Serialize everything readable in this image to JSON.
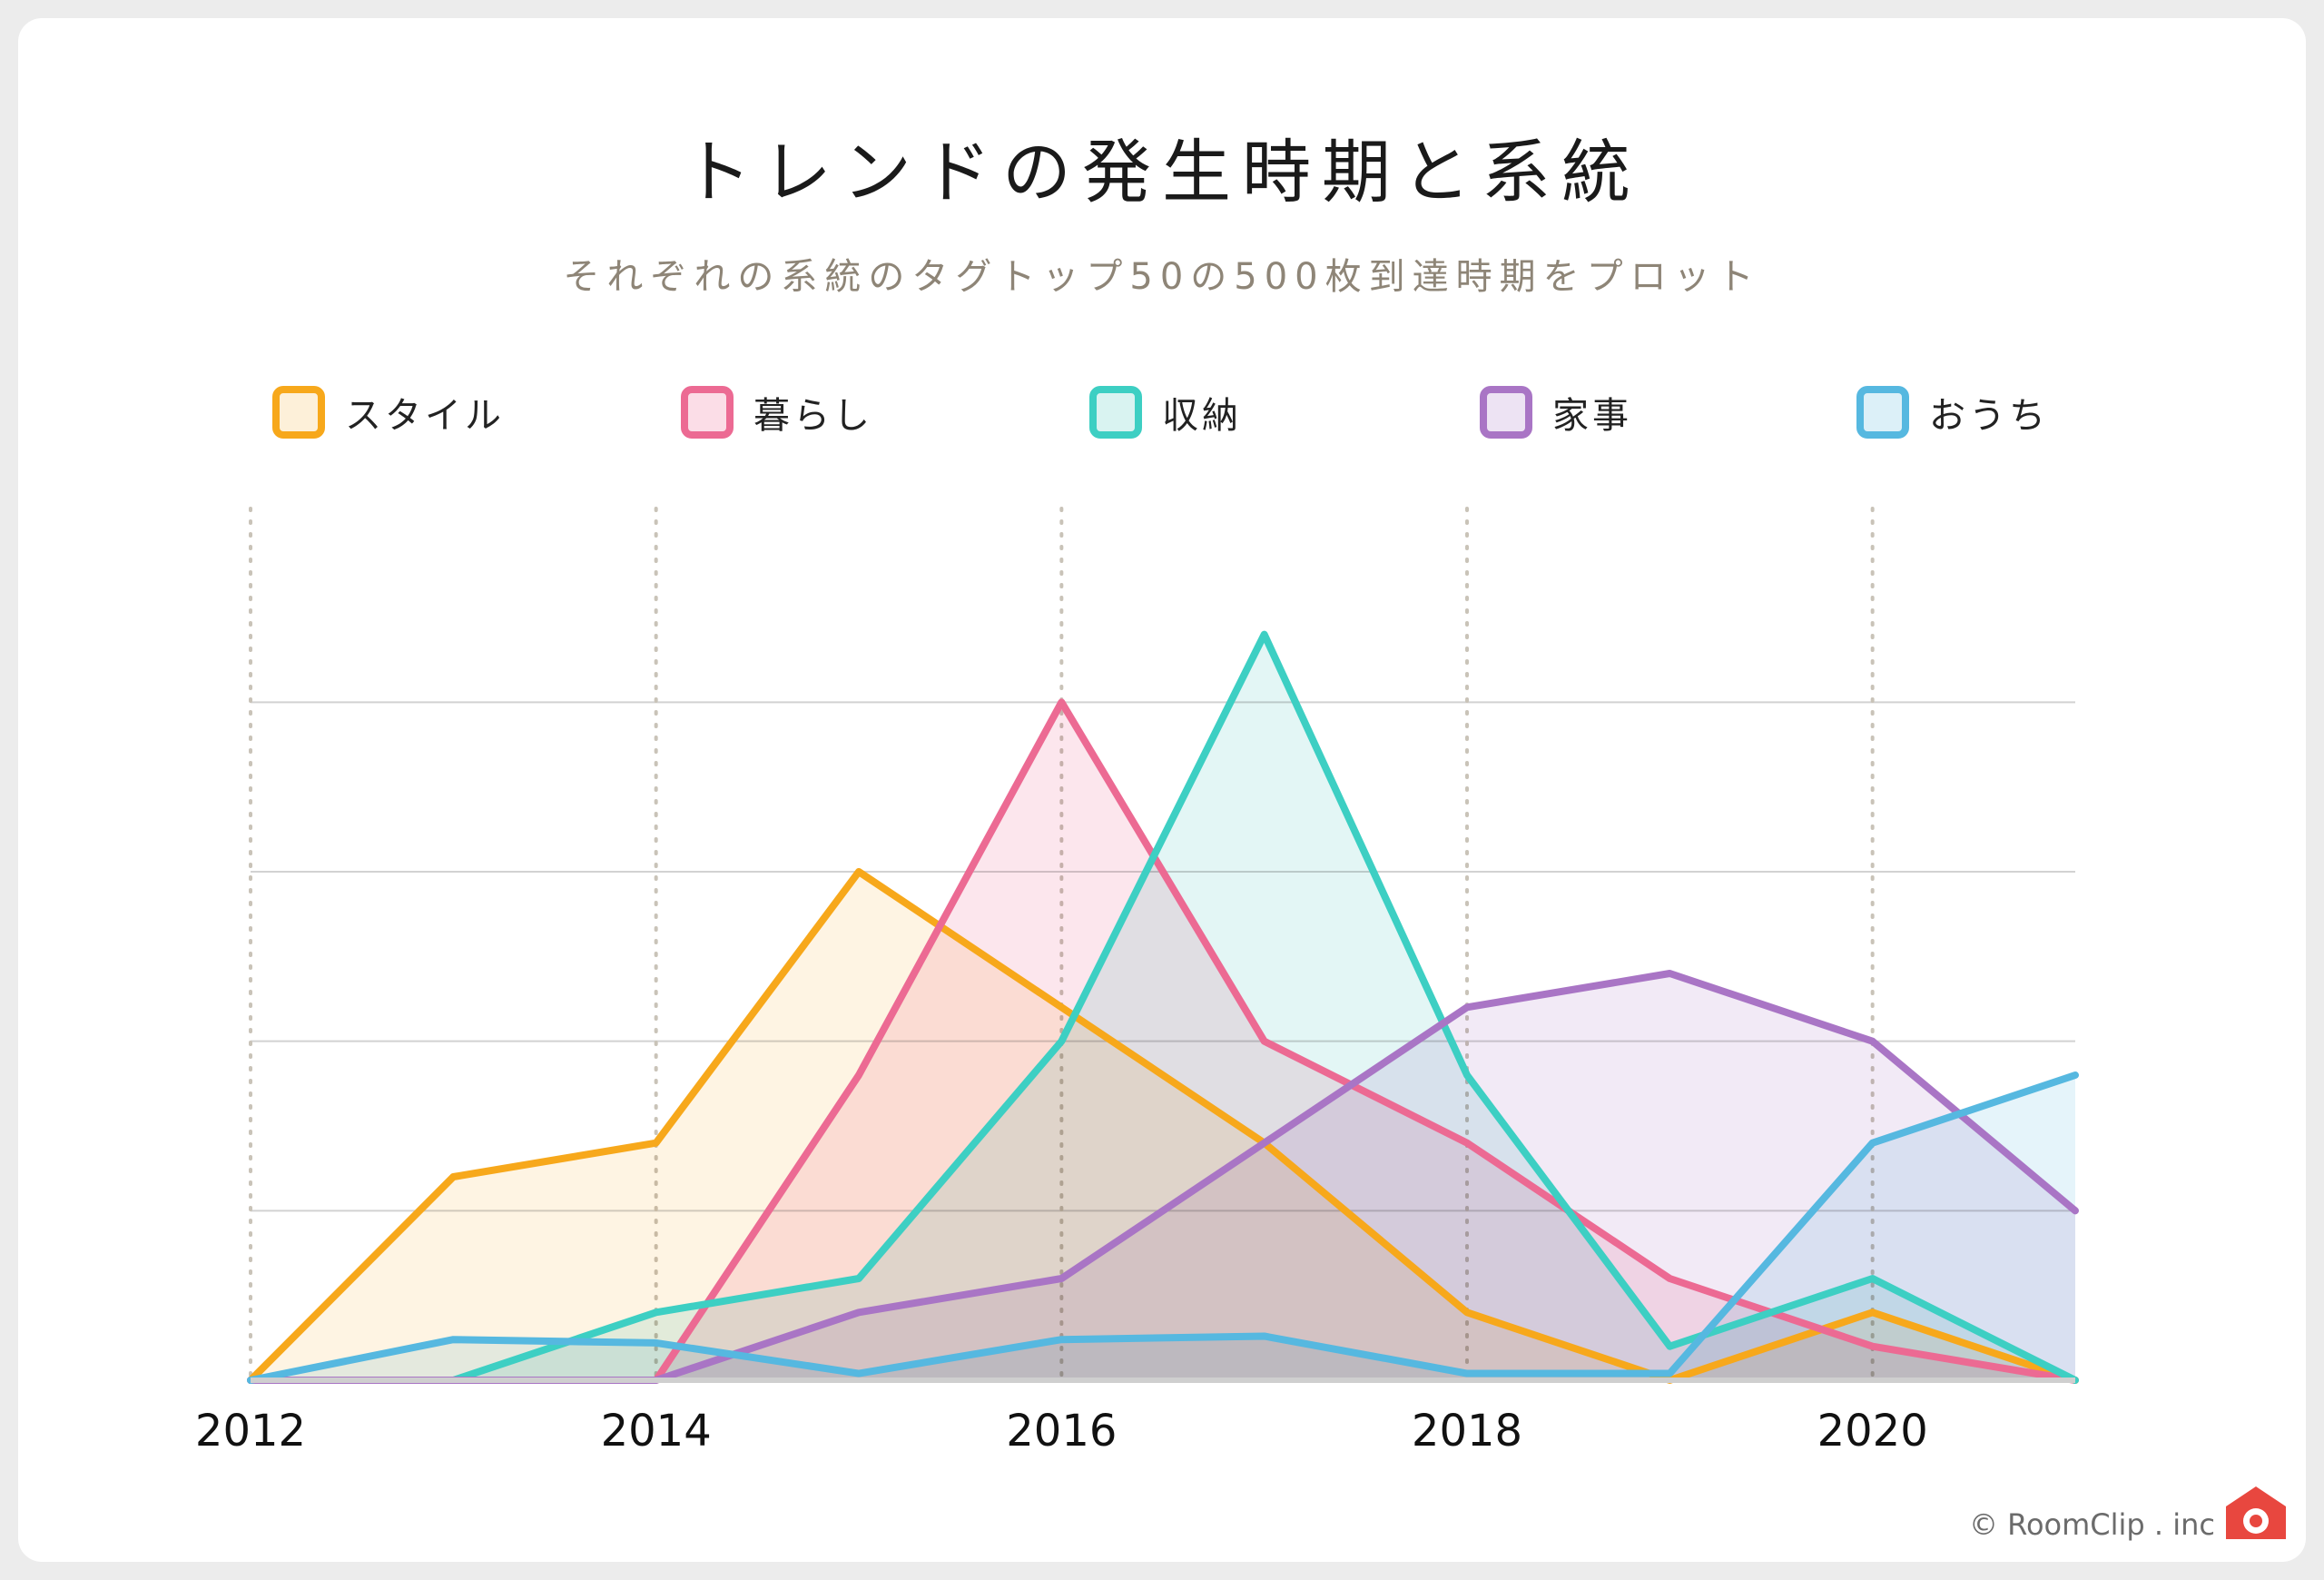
{
  "title": "トレンドの発生時期と系統",
  "subtitle": "それぞれの系統のタグトップ50の500枚到達時期をプロット",
  "credit": "© RoomClip . inc",
  "chart_data": {
    "type": "area",
    "title": "トレンドの発生時期と系統",
    "subtitle": "それぞれの系統のタグトップ50の500枚到達時期をプロット",
    "xlabel": "",
    "ylabel": "",
    "x": [
      2012,
      2013,
      2014,
      2015,
      2016,
      2017,
      2018,
      2019,
      2020,
      2021
    ],
    "xlim": [
      2012,
      2021
    ],
    "ylim": [
      0,
      20
    ],
    "x_ticks": [
      "2012",
      "2014",
      "2016",
      "2018",
      "2020"
    ],
    "y_gridlines": [
      5,
      10,
      15,
      20
    ],
    "vertical_gridlines": "dotted",
    "legend_position": "top",
    "series": [
      {
        "name": "スタイル",
        "color": "#f7a81b",
        "fill": "#fdf0d9",
        "values": [
          0,
          6,
          7,
          15,
          11,
          7,
          2,
          0,
          2,
          0
        ]
      },
      {
        "name": "暮らし",
        "color": "#ec6a93",
        "fill": "#fbdde7",
        "values": [
          0,
          0,
          0,
          9,
          20,
          10,
          7,
          3,
          1,
          0
        ]
      },
      {
        "name": "収納",
        "color": "#3dcfc3",
        "fill": "#d9f3f1",
        "values": [
          0,
          0,
          2,
          3,
          10,
          22,
          9,
          1,
          3,
          0
        ]
      },
      {
        "name": "家事",
        "color": "#a975c5",
        "fill": "#ede3f3",
        "values": [
          0,
          0,
          0,
          2,
          3,
          7,
          11,
          12,
          10,
          5
        ]
      },
      {
        "name": "おうち",
        "color": "#56b8e0",
        "fill": "#dcf0f8",
        "values": [
          0,
          1.2,
          1.1,
          0.2,
          1.2,
          1.3,
          0.2,
          0.2,
          7,
          9
        ]
      }
    ]
  }
}
